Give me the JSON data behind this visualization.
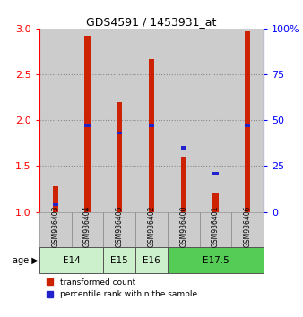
{
  "title": "GDS4591 / 1453931_at",
  "samples": [
    "GSM936403",
    "GSM936404",
    "GSM936405",
    "GSM936402",
    "GSM936400",
    "GSM936401",
    "GSM936406"
  ],
  "red_values": [
    1.28,
    2.92,
    2.2,
    2.67,
    1.6,
    1.21,
    2.97
  ],
  "blue_percentiles": [
    4,
    47,
    43,
    47,
    35,
    21,
    47
  ],
  "ylim_left": [
    1.0,
    3.0
  ],
  "ylim_right": [
    0,
    100
  ],
  "yticks_left": [
    1.0,
    1.5,
    2.0,
    2.5,
    3.0
  ],
  "yticks_right": [
    0,
    25,
    50,
    75,
    100
  ],
  "ytick_labels_right": [
    "0",
    "25",
    "50",
    "75",
    "100%"
  ],
  "age_groups": [
    {
      "label": "E14",
      "span": 2,
      "color": "#ccf0cc"
    },
    {
      "label": "E15",
      "span": 1,
      "color": "#ccf0cc"
    },
    {
      "label": "E16",
      "span": 1,
      "color": "#ccf0cc"
    },
    {
      "label": "E17.5",
      "span": 3,
      "color": "#55cc55"
    }
  ],
  "bar_width": 0.18,
  "red_color": "#cc2200",
  "blue_color": "#2222cc",
  "bar_bg_color": "#cccccc",
  "legend_red": "transformed count",
  "legend_blue": "percentile rank within the sample"
}
